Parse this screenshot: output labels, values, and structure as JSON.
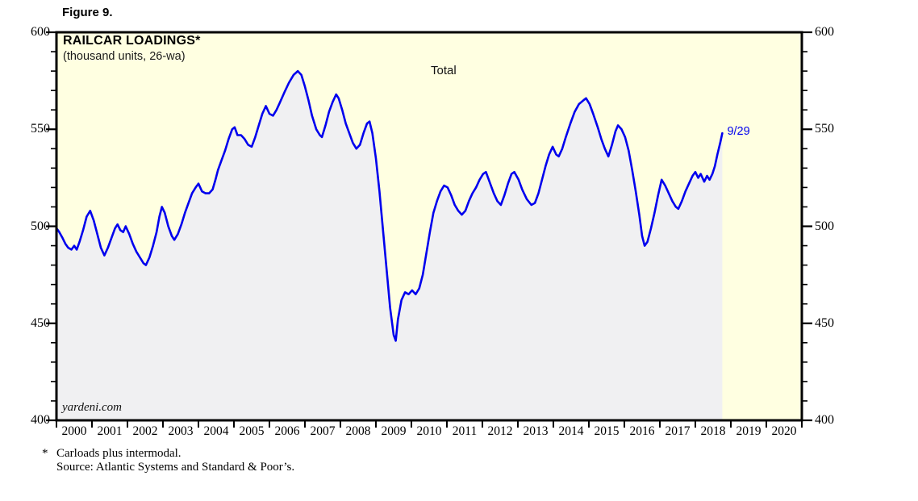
{
  "figure_label": "Figure 9.",
  "chart": {
    "title": "RAILCAR LOADINGS*",
    "subtitle": "(thousand units, 26-wa)",
    "series_label": "Total",
    "end_label": "9/29",
    "watermark": "yardeni.com"
  },
  "footnote": {
    "marker": "*",
    "line1": "Carloads plus intermodal.",
    "line2": "Source: Atlantic Systems and Standard & Poor’s."
  },
  "colors": {
    "line": "#0000ee",
    "area_fill": "#f0f0f2",
    "plot_background": "#ffffe1",
    "border": "#000000",
    "annotation": "#0000ee"
  },
  "chart_data": {
    "type": "line",
    "title": "RAILCAR LOADINGS*",
    "subtitle": "(thousand units, 26-wa)",
    "legend": "Total",
    "annotation": {
      "text": "9/29",
      "x": 2018.76,
      "y": 548
    },
    "x_range": [
      2000,
      2021
    ],
    "ylim": [
      400,
      600
    ],
    "y_major_ticks": [
      400,
      450,
      500,
      550,
      600
    ],
    "y_minor_step": 10,
    "x_tick_years": [
      2000,
      2001,
      2002,
      2003,
      2004,
      2005,
      2006,
      2007,
      2008,
      2009,
      2010,
      2011,
      2012,
      2013,
      2014,
      2015,
      2016,
      2017,
      2018,
      2019,
      2020
    ],
    "grid": false,
    "area_fill": true,
    "series": [
      {
        "name": "Total",
        "points": [
          [
            2000.0,
            499
          ],
          [
            2000.08,
            497
          ],
          [
            2000.17,
            494
          ],
          [
            2000.25,
            491
          ],
          [
            2000.33,
            489
          ],
          [
            2000.42,
            488
          ],
          [
            2000.5,
            490
          ],
          [
            2000.57,
            488
          ],
          [
            2000.65,
            492
          ],
          [
            2000.75,
            498
          ],
          [
            2000.85,
            505
          ],
          [
            2000.95,
            508
          ],
          [
            2001.05,
            503
          ],
          [
            2001.15,
            496
          ],
          [
            2001.25,
            489
          ],
          [
            2001.35,
            485
          ],
          [
            2001.45,
            489
          ],
          [
            2001.55,
            494
          ],
          [
            2001.65,
            499
          ],
          [
            2001.72,
            501
          ],
          [
            2001.8,
            498
          ],
          [
            2001.88,
            497
          ],
          [
            2001.95,
            500
          ],
          [
            2002.05,
            496
          ],
          [
            2002.15,
            491
          ],
          [
            2002.25,
            487
          ],
          [
            2002.35,
            484
          ],
          [
            2002.45,
            481
          ],
          [
            2002.52,
            480
          ],
          [
            2002.62,
            484
          ],
          [
            2002.72,
            490
          ],
          [
            2002.82,
            497
          ],
          [
            2002.9,
            505
          ],
          [
            2002.97,
            510
          ],
          [
            2003.05,
            507
          ],
          [
            2003.15,
            500
          ],
          [
            2003.25,
            495
          ],
          [
            2003.32,
            493
          ],
          [
            2003.42,
            496
          ],
          [
            2003.52,
            501
          ],
          [
            2003.62,
            507
          ],
          [
            2003.72,
            512
          ],
          [
            2003.82,
            517
          ],
          [
            2003.92,
            520
          ],
          [
            2004.0,
            522
          ],
          [
            2004.1,
            518
          ],
          [
            2004.2,
            517
          ],
          [
            2004.3,
            517
          ],
          [
            2004.4,
            519
          ],
          [
            2004.48,
            524
          ],
          [
            2004.55,
            529
          ],
          [
            2004.65,
            534
          ],
          [
            2004.75,
            539
          ],
          [
            2004.85,
            545
          ],
          [
            2004.95,
            550
          ],
          [
            2005.02,
            551
          ],
          [
            2005.1,
            547
          ],
          [
            2005.2,
            547
          ],
          [
            2005.3,
            545
          ],
          [
            2005.4,
            542
          ],
          [
            2005.5,
            541
          ],
          [
            2005.6,
            546
          ],
          [
            2005.7,
            552
          ],
          [
            2005.8,
            558
          ],
          [
            2005.9,
            562
          ],
          [
            2006.0,
            558
          ],
          [
            2006.1,
            557
          ],
          [
            2006.2,
            560
          ],
          [
            2006.3,
            564
          ],
          [
            2006.42,
            569
          ],
          [
            2006.55,
            574
          ],
          [
            2006.68,
            578
          ],
          [
            2006.8,
            580
          ],
          [
            2006.9,
            578
          ],
          [
            2007.0,
            572
          ],
          [
            2007.1,
            565
          ],
          [
            2007.2,
            557
          ],
          [
            2007.32,
            550
          ],
          [
            2007.42,
            547
          ],
          [
            2007.48,
            546
          ],
          [
            2007.58,
            552
          ],
          [
            2007.68,
            559
          ],
          [
            2007.78,
            564
          ],
          [
            2007.88,
            568
          ],
          [
            2007.95,
            566
          ],
          [
            2008.05,
            560
          ],
          [
            2008.15,
            553
          ],
          [
            2008.25,
            548
          ],
          [
            2008.35,
            543
          ],
          [
            2008.45,
            540
          ],
          [
            2008.55,
            542
          ],
          [
            2008.65,
            548
          ],
          [
            2008.75,
            553
          ],
          [
            2008.82,
            554
          ],
          [
            2008.9,
            548
          ],
          [
            2009.0,
            535
          ],
          [
            2009.1,
            518
          ],
          [
            2009.2,
            498
          ],
          [
            2009.3,
            478
          ],
          [
            2009.4,
            458
          ],
          [
            2009.5,
            444
          ],
          [
            2009.56,
            441
          ],
          [
            2009.62,
            452
          ],
          [
            2009.72,
            462
          ],
          [
            2009.82,
            466
          ],
          [
            2009.92,
            465
          ],
          [
            2010.02,
            467
          ],
          [
            2010.12,
            465
          ],
          [
            2010.22,
            468
          ],
          [
            2010.32,
            475
          ],
          [
            2010.42,
            486
          ],
          [
            2010.52,
            497
          ],
          [
            2010.62,
            507
          ],
          [
            2010.72,
            513
          ],
          [
            2010.82,
            518
          ],
          [
            2010.92,
            521
          ],
          [
            2011.02,
            520
          ],
          [
            2011.12,
            516
          ],
          [
            2011.22,
            511
          ],
          [
            2011.32,
            508
          ],
          [
            2011.42,
            506
          ],
          [
            2011.52,
            508
          ],
          [
            2011.62,
            513
          ],
          [
            2011.72,
            517
          ],
          [
            2011.82,
            520
          ],
          [
            2011.92,
            524
          ],
          [
            2012.02,
            527
          ],
          [
            2012.1,
            528
          ],
          [
            2012.2,
            523
          ],
          [
            2012.32,
            517
          ],
          [
            2012.42,
            513
          ],
          [
            2012.52,
            511
          ],
          [
            2012.62,
            516
          ],
          [
            2012.72,
            522
          ],
          [
            2012.82,
            527
          ],
          [
            2012.9,
            528
          ],
          [
            2013.02,
            524
          ],
          [
            2013.12,
            519
          ],
          [
            2013.25,
            514
          ],
          [
            2013.38,
            511
          ],
          [
            2013.48,
            512
          ],
          [
            2013.58,
            517
          ],
          [
            2013.68,
            524
          ],
          [
            2013.78,
            531
          ],
          [
            2013.88,
            537
          ],
          [
            2013.98,
            541
          ],
          [
            2014.08,
            537
          ],
          [
            2014.15,
            536
          ],
          [
            2014.25,
            540
          ],
          [
            2014.35,
            546
          ],
          [
            2014.48,
            553
          ],
          [
            2014.6,
            559
          ],
          [
            2014.72,
            563
          ],
          [
            2014.85,
            565
          ],
          [
            2014.92,
            566
          ],
          [
            2015.02,
            563
          ],
          [
            2015.12,
            558
          ],
          [
            2015.25,
            551
          ],
          [
            2015.35,
            545
          ],
          [
            2015.45,
            540
          ],
          [
            2015.55,
            536
          ],
          [
            2015.65,
            542
          ],
          [
            2015.75,
            549
          ],
          [
            2015.82,
            552
          ],
          [
            2015.92,
            550
          ],
          [
            2016.02,
            546
          ],
          [
            2016.12,
            539
          ],
          [
            2016.22,
            529
          ],
          [
            2016.32,
            518
          ],
          [
            2016.42,
            506
          ],
          [
            2016.5,
            495
          ],
          [
            2016.57,
            490
          ],
          [
            2016.65,
            492
          ],
          [
            2016.75,
            499
          ],
          [
            2016.85,
            507
          ],
          [
            2016.95,
            516
          ],
          [
            2017.05,
            524
          ],
          [
            2017.15,
            521
          ],
          [
            2017.25,
            517
          ],
          [
            2017.35,
            513
          ],
          [
            2017.45,
            510
          ],
          [
            2017.52,
            509
          ],
          [
            2017.62,
            513
          ],
          [
            2017.72,
            518
          ],
          [
            2017.82,
            522
          ],
          [
            2017.92,
            526
          ],
          [
            2018.0,
            528
          ],
          [
            2018.08,
            525
          ],
          [
            2018.15,
            527
          ],
          [
            2018.25,
            523
          ],
          [
            2018.33,
            526
          ],
          [
            2018.4,
            524
          ],
          [
            2018.48,
            527
          ],
          [
            2018.55,
            531
          ],
          [
            2018.62,
            537
          ],
          [
            2018.7,
            543
          ],
          [
            2018.76,
            548
          ]
        ]
      }
    ]
  }
}
